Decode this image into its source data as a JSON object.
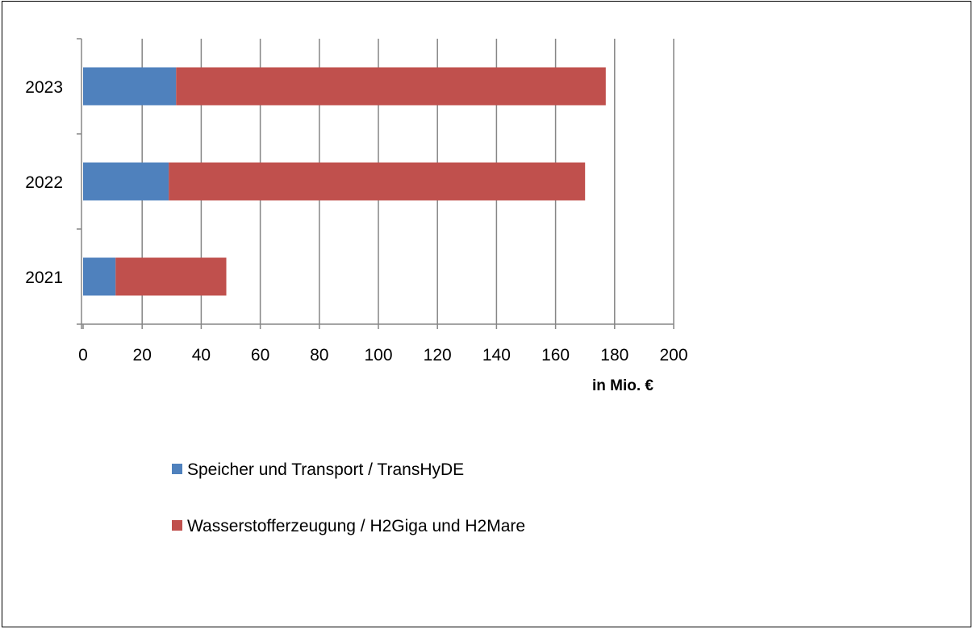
{
  "chart_data": {
    "type": "bar",
    "orientation": "horizontal",
    "stacked": true,
    "categories": [
      "2021",
      "2022",
      "2023"
    ],
    "series": [
      {
        "name": "Speicher und Transport / TransHyDE",
        "color": "#4F81BD",
        "values": [
          11,
          29,
          31.5
        ]
      },
      {
        "name": "Wasserstofferzeugung / H2Giga und H2Mare",
        "color": "#C0504D",
        "values": [
          37.5,
          141,
          145.5
        ]
      }
    ],
    "xlim": [
      0,
      200
    ],
    "xticks": [
      "0",
      "20",
      "40",
      "60",
      "80",
      "100",
      "120",
      "140",
      "160",
      "180",
      "200"
    ],
    "xlabel": "in Mio. €",
    "ylabel": "",
    "title": "",
    "grid": "vertical",
    "legend_position": "bottom"
  }
}
